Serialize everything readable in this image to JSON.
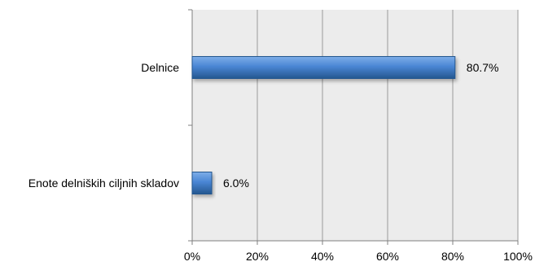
{
  "chart_data": {
    "type": "bar",
    "orientation": "horizontal",
    "categories": [
      "Delnice",
      "Enote delniških ciljnih skladov"
    ],
    "values": [
      80.7,
      6.0
    ],
    "data_labels": [
      "80.7%",
      "6.0%"
    ],
    "xlim": [
      0,
      100
    ],
    "x_ticks": [
      0,
      20,
      40,
      60,
      80,
      100
    ],
    "x_tick_labels": [
      "0%",
      "20%",
      "40%",
      "60%",
      "80%",
      "100%"
    ],
    "grid": true,
    "legend": "none",
    "colors": {
      "bar_light": "#7eaee8",
      "bar_mid": "#4a86d4",
      "bar_dark": "#24578f",
      "plot_bg": "#ececec",
      "grid": "#9a9a9a",
      "axis": "#7f7f7f"
    }
  }
}
